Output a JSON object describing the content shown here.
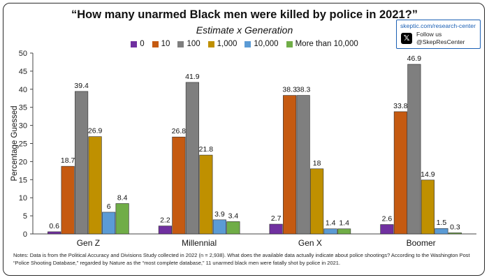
{
  "title": "“How many unarmed Black men were killed by police in 2021?”",
  "subtitle": "Estimate x Generation",
  "badge": {
    "url": "skeptic.com/research-center",
    "follow": "Follow us",
    "handle": "@SkepResCenter",
    "icon": "x-logo-icon"
  },
  "chart_data": {
    "type": "bar",
    "categories": [
      "Gen Z",
      "Millennial",
      "Gen X",
      "Boomer"
    ],
    "series": [
      {
        "name": "0",
        "color": "#7030a0",
        "values": [
          0.6,
          2.2,
          2.7,
          2.6
        ]
      },
      {
        "name": "10",
        "color": "#c55a11",
        "values": [
          18.7,
          26.8,
          38.3,
          33.8
        ]
      },
      {
        "name": "100",
        "color": "#7f7f7f",
        "values": [
          39.4,
          41.9,
          38.3,
          46.9
        ]
      },
      {
        "name": "1,000",
        "color": "#bf9000",
        "values": [
          26.9,
          21.8,
          18,
          14.9
        ]
      },
      {
        "name": "10,000",
        "color": "#5b9bd5",
        "values": [
          6,
          3.9,
          1.4,
          1.5
        ]
      },
      {
        "name": "More than 10,000",
        "color": "#70ad47",
        "values": [
          8.4,
          3.4,
          1.4,
          0.3
        ]
      }
    ],
    "ylabel": "Percentage Guessed",
    "ylim": [
      0,
      50
    ],
    "yticks": [
      "0",
      "5",
      "10",
      "15",
      "20",
      "25",
      "30",
      "35",
      "40",
      "45",
      "50"
    ],
    "grid": false,
    "legend_position": "top"
  },
  "notes": "Notes: Data is from the Political Accuracy and Divisions Study collected in 2022 (n = 2,938). What does the available data actually indicate about police shootings? According to the Washington Post “Police Shooting Database,” regarded by Nature as the “most complete database,” 11 unarmed black men were fatally shot by police in 2021."
}
